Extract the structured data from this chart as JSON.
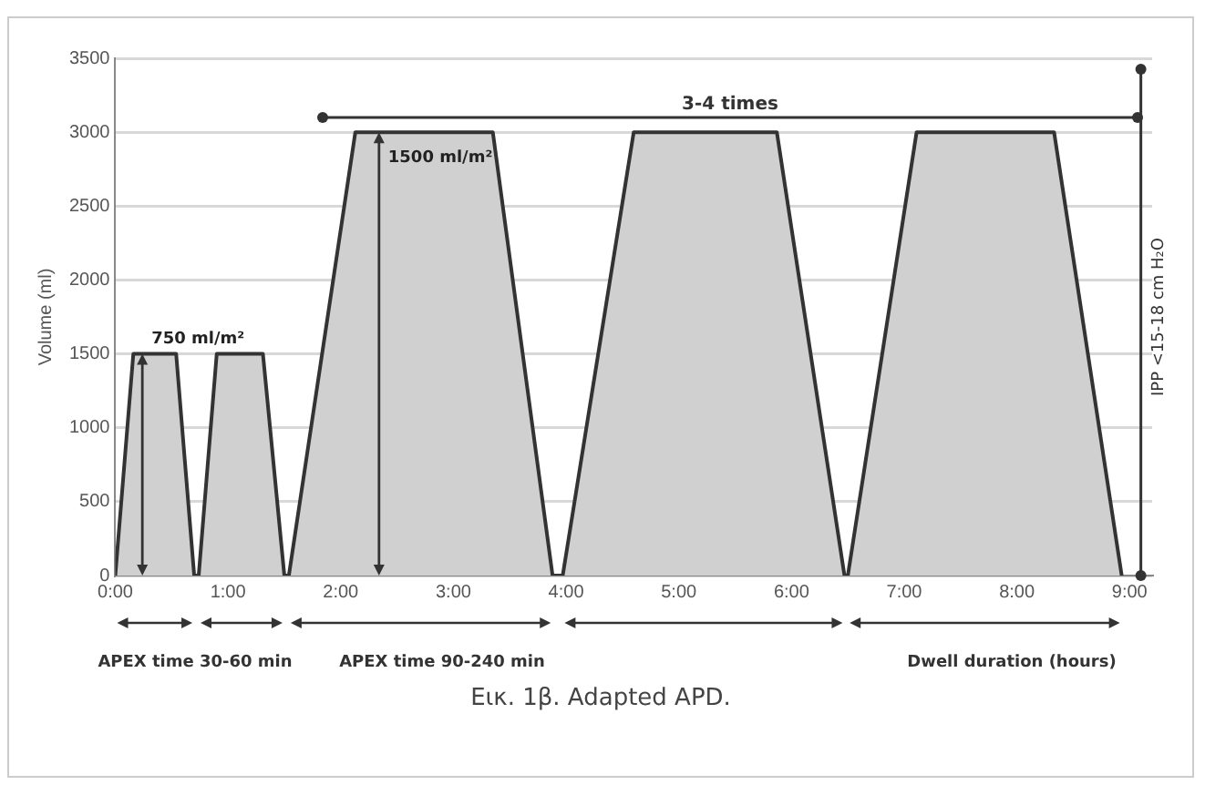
{
  "chart_data": {
    "type": "area",
    "ylabel": "Volume (ml)",
    "x": [
      0,
      0.16,
      0.54,
      0.7,
      0.74,
      0.9,
      1.31,
      1.5,
      1.54,
      2.13,
      3.35,
      3.88,
      3.97,
      4.6,
      5.87,
      6.47,
      6.5,
      7.11,
      8.33,
      8.93
    ],
    "series": [
      {
        "color": "#d0d0d0",
        "values": [
          0,
          1500,
          1500,
          0,
          0,
          1500,
          1500,
          0,
          0,
          3000,
          3000,
          0,
          0,
          3000,
          3000,
          0,
          0,
          3000,
          3000,
          0
        ]
      }
    ],
    "xlim": [
      0,
      9.2
    ],
    "xticks": [
      {
        "value": 0,
        "label": "0:00"
      },
      {
        "value": 1,
        "label": "1:00"
      },
      {
        "value": 2,
        "label": "2:00"
      },
      {
        "value": 3,
        "label": "3:00"
      },
      {
        "value": 4,
        "label": "4:00"
      },
      {
        "value": 5,
        "label": "5:00"
      },
      {
        "value": 6,
        "label": "6:00"
      },
      {
        "value": 7,
        "label": "7:00"
      },
      {
        "value": 8,
        "label": "8:00"
      },
      {
        "value": 9,
        "label": "9:00"
      }
    ],
    "ylim": [
      0,
      3500
    ],
    "yticks": [
      0,
      500,
      1000,
      1500,
      2000,
      2500,
      3000,
      3500
    ],
    "grid": "y",
    "legend": false,
    "ref_lines": [
      {
        "axis": "y",
        "value": 3100,
        "label": "3-4 times"
      },
      {
        "axis": "x",
        "value": 9.1,
        "label": "IPP <15-18 cm H₂O"
      }
    ],
    "annotations": [
      {
        "text": "750 ml/m²",
        "x": 0.24,
        "y": 1500
      },
      {
        "text": "1500 ml/m²",
        "x": 2.34,
        "y": 3000
      },
      "APEX time 30-60 min",
      "APEX time 90-240 min",
      "Dwell duration (hours)",
      "Εικ. 1β. Adapted APD."
    ]
  }
}
